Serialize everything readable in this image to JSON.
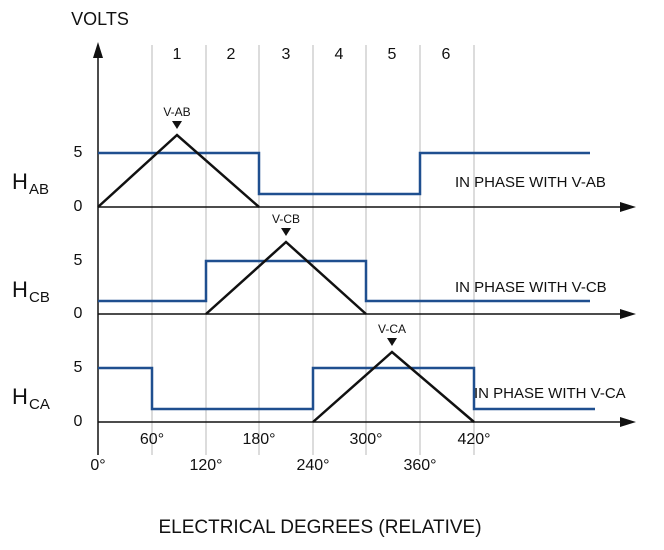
{
  "title": "VOLTS",
  "x_axis_label": "ELECTRICAL DEGREES (RELATIVE)",
  "sectors": [
    "1",
    "2",
    "3",
    "4",
    "5",
    "6"
  ],
  "levels": [
    "0",
    "5"
  ],
  "degrees": [
    "0°",
    "60°",
    "120°",
    "180°",
    "240°",
    "300°",
    "360°",
    "420°"
  ],
  "channels": [
    {
      "letter": "H",
      "subscript": "AB",
      "peak_label": "V-AB",
      "phase_note": "IN PHASE WITH V-AB"
    },
    {
      "letter": "H",
      "subscript": "CB",
      "peak_label": "V-CB",
      "phase_note": "IN PHASE WITH V-CB"
    },
    {
      "letter": "H",
      "subscript": "CA",
      "peak_label": "V-CA",
      "phase_note": "IN PHASE WITH V-CA"
    }
  ]
}
